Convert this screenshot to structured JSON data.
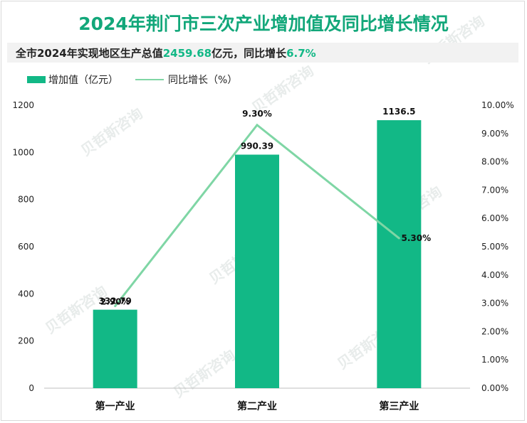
{
  "title": "2024年荆门市三次产业增加值及同比增长情况",
  "subtitle": {
    "prefix": "全市2024年实现地区生产总值",
    "gdp": "2459.68",
    "mid": "亿元，同比增长",
    "growth": "6.7%"
  },
  "legend": {
    "bar": "增加值（亿元）",
    "line": "同比增长（%）"
  },
  "watermark": "贝哲斯咨询",
  "colors": {
    "bar": "#12b886",
    "line": "#7fd6a5",
    "title": "#12a77a"
  },
  "chart_data": {
    "type": "bar",
    "categories": [
      "第一产业",
      "第二产业",
      "第三产业"
    ],
    "series": [
      {
        "name": "增加值（亿元）",
        "type": "bar",
        "axis": "left",
        "values": [
          332.79,
          990.39,
          1136.5
        ],
        "labels": [
          "332.79",
          "990.39",
          "1136.5"
        ]
      },
      {
        "name": "同比增长（%）",
        "type": "line",
        "axis": "right",
        "values": [
          2.9,
          9.3,
          5.3
        ],
        "labels": [
          "2.90%",
          "9.30%",
          "5.30%"
        ]
      }
    ],
    "ylim_left": [
      0,
      1200
    ],
    "yticks_left": [
      "0",
      "200",
      "400",
      "600",
      "800",
      "1000",
      "1200"
    ],
    "ylim_right": [
      0,
      10
    ],
    "yticks_right": [
      "0.00%",
      "1.00%",
      "2.00%",
      "3.00%",
      "4.00%",
      "5.00%",
      "6.00%",
      "7.00%",
      "8.00%",
      "9.00%",
      "10.00%"
    ],
    "grid": false,
    "legend_position": "top-left"
  }
}
